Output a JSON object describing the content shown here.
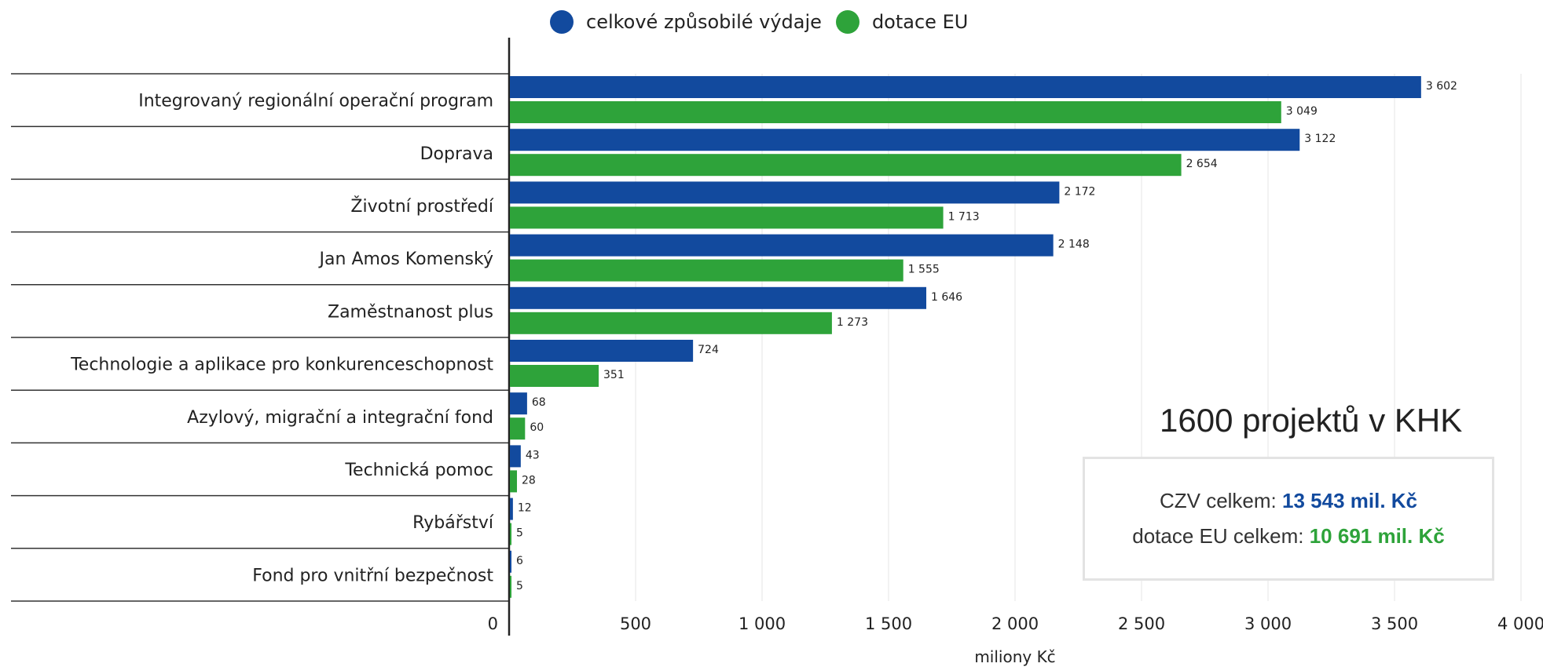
{
  "legend": {
    "items": [
      {
        "label": "celkové způsobilé výdaje",
        "color": "#124a9e"
      },
      {
        "label": "dotace EU",
        "color": "#2ea33a"
      }
    ]
  },
  "chart_data": {
    "type": "bar",
    "orientation": "horizontal",
    "categories": [
      "Integrovaný regionální operační program",
      "Doprava",
      "Životní prostředí",
      "Jan Amos Komenský",
      "Zaměstnanost plus",
      "Technologie a aplikace pro konkurenceschopnost",
      "Azylový, migrační a integrační fond",
      "Technická pomoc",
      "Rybářství",
      "Fond pro vnitřní bezpečnost"
    ],
    "series": [
      {
        "name": "celkové způsobilé výdaje",
        "color": "#124a9e",
        "values": [
          3602,
          3122,
          2172,
          2148,
          1646,
          724,
          68,
          43,
          12,
          6
        ],
        "labels": [
          "3 602",
          "3 122",
          "2 172",
          "2 148",
          "1 646",
          "724",
          "68",
          "43",
          "12",
          "6"
        ]
      },
      {
        "name": "dotace EU",
        "color": "#2ea33a",
        "values": [
          3049,
          2654,
          1713,
          1555,
          1273,
          351,
          60,
          28,
          5,
          5
        ],
        "labels": [
          "3 049",
          "2 654",
          "1 713",
          "1 555",
          "1 273",
          "351",
          "60",
          "28",
          "5",
          "5"
        ]
      }
    ],
    "xlabel": "miliony Kč",
    "ylabel": "",
    "xlim": [
      0,
      4000
    ],
    "xticks": [
      0,
      500,
      1000,
      1500,
      2000,
      2500,
      3000,
      3500,
      4000
    ],
    "xtick_labels": [
      "0",
      "500",
      "1 000",
      "1 500",
      "2 000",
      "2 500",
      "3 000",
      "3 500",
      "4 000"
    ],
    "grid": true,
    "legend_position": "top"
  },
  "annotation": {
    "projects": "1600 projektů v KHK"
  },
  "summary": {
    "czv_label": "CZV celkem:",
    "czv_value": "13 543 mil. Kč",
    "eu_label": "dotace EU celkem:",
    "eu_value": "10 691 mil. Kč"
  }
}
